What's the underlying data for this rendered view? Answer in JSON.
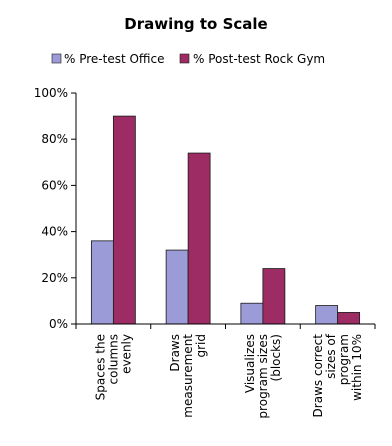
{
  "chart_data": {
    "type": "bar",
    "title": "Drawing to Scale",
    "legend_position": "top",
    "grid": false,
    "ylim": [
      0,
      100
    ],
    "y_ticks": [
      "0%",
      "20%",
      "40%",
      "60%",
      "80%",
      "100%"
    ],
    "categories": [
      [
        "Spaces the",
        "columns",
        "evenly"
      ],
      [
        "Draws",
        "measurement",
        "grid"
      ],
      [
        "Visualizes",
        "program sizes",
        "(blocks)"
      ],
      [
        "Draws correct",
        "sizes of",
        "program",
        "within 10%"
      ]
    ],
    "series": [
      {
        "name": "% Pre-test Office",
        "color": "#9b9bd8",
        "values": [
          36,
          32,
          9,
          8
        ]
      },
      {
        "name": "% Post-test Rock Gym",
        "color": "#9c2c63",
        "values": [
          90,
          74,
          24,
          5
        ]
      }
    ]
  }
}
